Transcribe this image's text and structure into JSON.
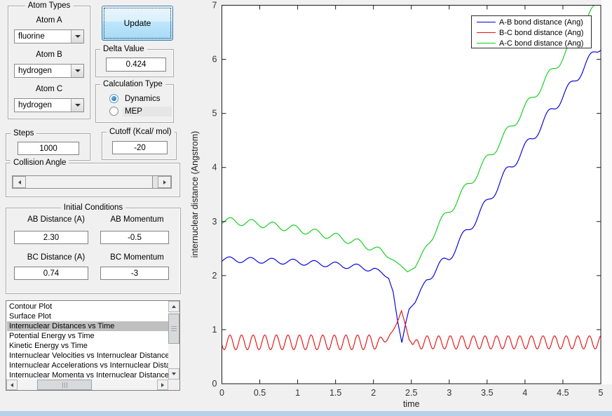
{
  "window": {
    "background": "#f0f0f0",
    "bottom_strip_color": "#b5d0e7"
  },
  "controls": {
    "atom_types": {
      "title": "Atom Types",
      "fields": [
        {
          "label": "Atom A",
          "value": "fluorine"
        },
        {
          "label": "Atom B",
          "value": "hydrogen"
        },
        {
          "label": "Atom C",
          "value": "hydrogen"
        }
      ]
    },
    "update_button": {
      "label": "Update"
    },
    "delta": {
      "title": "Delta Value",
      "value": "0.424"
    },
    "calculation_type": {
      "title": "Calculation Type",
      "options": [
        {
          "label": "Dynamics",
          "selected": true
        },
        {
          "label": "MEP",
          "selected": false
        }
      ]
    },
    "steps": {
      "title": "Steps",
      "value": "1000"
    },
    "cutoff": {
      "title": "Cutoff (Kcal/ mol)",
      "value": "-20"
    },
    "collision_angle": {
      "title": "Collision Angle"
    },
    "initial_conditions": {
      "title": "Initial Conditions",
      "fields": [
        {
          "label": "AB Distance (A)",
          "value": "2.30"
        },
        {
          "label": "AB Momentum",
          "value": "-0.5"
        },
        {
          "label": "BC Distance (A)",
          "value": "0.74"
        },
        {
          "label": "BC Momentum",
          "value": "-3"
        }
      ]
    },
    "plot_list": {
      "selected_index": 2,
      "items": [
        "Contour Plot",
        "Surface Plot",
        "Internuclear Distances vs Time",
        "Potential Energy vs Time",
        "Kinetic Energy vs Time",
        "Internuclear Velocities vs Internuclear Distance",
        "Internuclear Accelerations vs Internuclear Distance",
        "Internuclear Momenta vs Internuclear Distance"
      ]
    }
  },
  "chart_data": {
    "type": "line",
    "title": "",
    "xlabel": "time",
    "ylabel": "internuclear distance (Angstrom)",
    "xlim": [
      0,
      5
    ],
    "ylim": [
      0,
      7
    ],
    "xticks": [
      0,
      0.5,
      1,
      1.5,
      2,
      2.5,
      3,
      3.5,
      4,
      4.5,
      5
    ],
    "yticks": [
      0,
      1,
      2,
      3,
      4,
      5,
      6,
      7
    ],
    "grid": false,
    "legend_position": "top-right",
    "series_note": "curves = piecewise-linear trend keypoints [t,value] plus sinusoidal oscillation value = trend(t) + amp(t)*sin(2*pi*t/period + phase); collision of F + H2 near t=2.4",
    "series": [
      {
        "name": "A-B bond distance (Ang)",
        "color": "#0000dd",
        "trend": [
          [
            0,
            2.3
          ],
          [
            0.5,
            2.28
          ],
          [
            1,
            2.25
          ],
          [
            1.5,
            2.2
          ],
          [
            1.8,
            2.16
          ],
          [
            2.0,
            2.12
          ],
          [
            2.1,
            2.05
          ],
          [
            2.2,
            1.95
          ],
          [
            2.26,
            1.7
          ],
          [
            2.32,
            1.15
          ],
          [
            2.375,
            0.76
          ],
          [
            2.43,
            1.15
          ],
          [
            2.47,
            1.38
          ],
          [
            2.55,
            1.5
          ],
          [
            2.62,
            1.72
          ],
          [
            2.7,
            1.93
          ],
          [
            3.0,
            2.35
          ],
          [
            3.25,
            2.85
          ],
          [
            3.5,
            3.35
          ],
          [
            3.75,
            3.9
          ],
          [
            4.1,
            4.55
          ],
          [
            4.35,
            5.05
          ],
          [
            4.6,
            5.5
          ],
          [
            4.8,
            5.9
          ],
          [
            5.02,
            6.3
          ]
        ],
        "osc": {
          "period": 0.28,
          "phase": -0.67,
          "amp": [
            [
              0,
              0.05
            ],
            [
              2.0,
              0.05
            ],
            [
              2.2,
              0
            ],
            [
              2.6,
              0
            ],
            [
              2.8,
              0.09
            ],
            [
              5.02,
              0.09
            ]
          ]
        }
      },
      {
        "name": "B-C bond distance (Ang)",
        "color": "#e81112",
        "trend": [
          [
            0,
            0.765
          ],
          [
            2.05,
            0.765
          ],
          [
            2.15,
            0.8
          ],
          [
            2.25,
            0.95
          ],
          [
            2.31,
            1.12
          ],
          [
            2.37,
            1.35
          ],
          [
            2.43,
            1.05
          ],
          [
            2.47,
            0.82
          ],
          [
            2.52,
            0.72
          ],
          [
            2.58,
            0.765
          ],
          [
            5.02,
            0.765
          ]
        ],
        "osc": {
          "period": 0.153,
          "phase": -2.82,
          "amp": [
            [
              0,
              0.135
            ],
            [
              2.0,
              0.135
            ],
            [
              2.15,
              0.05
            ],
            [
              2.3,
              0
            ],
            [
              2.5,
              0
            ],
            [
              2.62,
              0.12
            ],
            [
              5.02,
              0.12
            ]
          ]
        }
      },
      {
        "name": "A-C bond distance (Ang)",
        "color": "#11cf1c",
        "trend": [
          [
            0,
            3.02
          ],
          [
            0.5,
            2.96
          ],
          [
            1,
            2.86
          ],
          [
            1.5,
            2.72
          ],
          [
            1.8,
            2.61
          ],
          [
            2.0,
            2.51
          ],
          [
            2.2,
            2.36
          ],
          [
            2.35,
            2.2
          ],
          [
            2.45,
            2.07
          ],
          [
            2.55,
            2.15
          ],
          [
            2.65,
            2.42
          ],
          [
            2.8,
            2.8
          ],
          [
            3.0,
            3.2
          ],
          [
            3.5,
            4.15
          ],
          [
            4.0,
            5.1
          ],
          [
            4.5,
            6.05
          ],
          [
            4.75,
            6.55
          ],
          [
            5.02,
            7.2
          ]
        ],
        "osc": {
          "period": 0.28,
          "phase": -1.0,
          "amp": [
            [
              0,
              0.065
            ],
            [
              2.1,
              0.065
            ],
            [
              2.3,
              0
            ],
            [
              2.6,
              0
            ],
            [
              2.8,
              0.085
            ],
            [
              5.02,
              0.085
            ]
          ]
        }
      }
    ]
  }
}
